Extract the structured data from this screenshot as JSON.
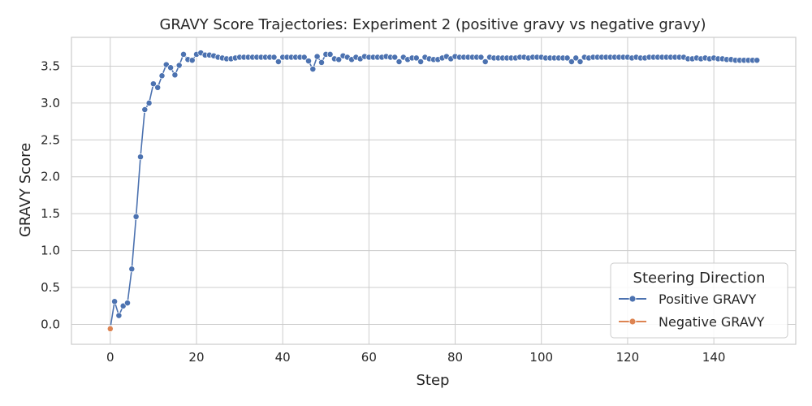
{
  "chart_data": {
    "type": "line",
    "title": "GRAVY Score Trajectories: Experiment 2 (positive gravy vs negative gravy)",
    "xlabel": "Step",
    "ylabel": "GRAVY Score",
    "xlim": [
      -9,
      159
    ],
    "ylim": [
      -0.27,
      3.89
    ],
    "xticks": [
      0,
      20,
      40,
      60,
      80,
      100,
      120,
      140
    ],
    "yticks": [
      0.0,
      0.5,
      1.0,
      1.5,
      2.0,
      2.5,
      3.0,
      3.5
    ],
    "ytick_labels": [
      "0.0",
      "0.5",
      "1.0",
      "1.5",
      "2.0",
      "2.5",
      "3.0",
      "3.5"
    ],
    "grid": true,
    "legend": {
      "title": "Steering Direction",
      "placement": "lower-right"
    },
    "series": [
      {
        "name": "Positive GRAVY",
        "color": "#4c72b0",
        "x": [
          0,
          1,
          2,
          3,
          4,
          5,
          6,
          7,
          8,
          9,
          10,
          11,
          12,
          13,
          14,
          15,
          16,
          17,
          18,
          19,
          20,
          21,
          22,
          23,
          24,
          25,
          26,
          27,
          28,
          29,
          30,
          31,
          32,
          33,
          34,
          35,
          36,
          37,
          38,
          39,
          40,
          41,
          42,
          43,
          44,
          45,
          46,
          47,
          48,
          49,
          50,
          51,
          52,
          53,
          54,
          55,
          56,
          57,
          58,
          59,
          60,
          61,
          62,
          63,
          64,
          65,
          66,
          67,
          68,
          69,
          70,
          71,
          72,
          73,
          74,
          75,
          76,
          77,
          78,
          79,
          80,
          81,
          82,
          83,
          84,
          85,
          86,
          87,
          88,
          89,
          90,
          91,
          92,
          93,
          94,
          95,
          96,
          97,
          98,
          99,
          100,
          101,
          102,
          103,
          104,
          105,
          106,
          107,
          108,
          109,
          110,
          111,
          112,
          113,
          114,
          115,
          116,
          117,
          118,
          119,
          120,
          121,
          122,
          123,
          124,
          125,
          126,
          127,
          128,
          129,
          130,
          131,
          132,
          133,
          134,
          135,
          136,
          137,
          138,
          139,
          140,
          141,
          142,
          143,
          144,
          145,
          146,
          147,
          148,
          149,
          150
        ],
        "values": [
          -0.05,
          0.31,
          0.12,
          0.25,
          0.29,
          0.75,
          1.46,
          2.27,
          2.91,
          3.0,
          3.26,
          3.21,
          3.37,
          3.52,
          3.48,
          3.38,
          3.51,
          3.66,
          3.59,
          3.58,
          3.66,
          3.68,
          3.65,
          3.65,
          3.64,
          3.62,
          3.61,
          3.6,
          3.6,
          3.61,
          3.62,
          3.62,
          3.62,
          3.62,
          3.62,
          3.62,
          3.62,
          3.62,
          3.62,
          3.56,
          3.62,
          3.62,
          3.62,
          3.62,
          3.62,
          3.62,
          3.57,
          3.46,
          3.63,
          3.55,
          3.66,
          3.66,
          3.6,
          3.59,
          3.64,
          3.62,
          3.59,
          3.62,
          3.6,
          3.63,
          3.62,
          3.62,
          3.62,
          3.62,
          3.63,
          3.62,
          3.62,
          3.56,
          3.62,
          3.59,
          3.61,
          3.61,
          3.56,
          3.62,
          3.6,
          3.59,
          3.59,
          3.61,
          3.63,
          3.6,
          3.63,
          3.62,
          3.62,
          3.62,
          3.62,
          3.62,
          3.62,
          3.56,
          3.62,
          3.61,
          3.61,
          3.61,
          3.61,
          3.61,
          3.61,
          3.62,
          3.62,
          3.61,
          3.62,
          3.62,
          3.62,
          3.61,
          3.61,
          3.61,
          3.61,
          3.61,
          3.61,
          3.56,
          3.61,
          3.56,
          3.62,
          3.61,
          3.62,
          3.62,
          3.62,
          3.62,
          3.62,
          3.62,
          3.62,
          3.62,
          3.62,
          3.61,
          3.62,
          3.61,
          3.61,
          3.62,
          3.62,
          3.62,
          3.62,
          3.62,
          3.62,
          3.62,
          3.62,
          3.62,
          3.6,
          3.6,
          3.61,
          3.6,
          3.61,
          3.6,
          3.61,
          3.6,
          3.6,
          3.59,
          3.59,
          3.58,
          3.58,
          3.58,
          3.58,
          3.58,
          3.58
        ]
      },
      {
        "name": "Negative GRAVY",
        "color": "#dd8452",
        "x": [
          0
        ],
        "values": [
          -0.06
        ]
      }
    ]
  }
}
